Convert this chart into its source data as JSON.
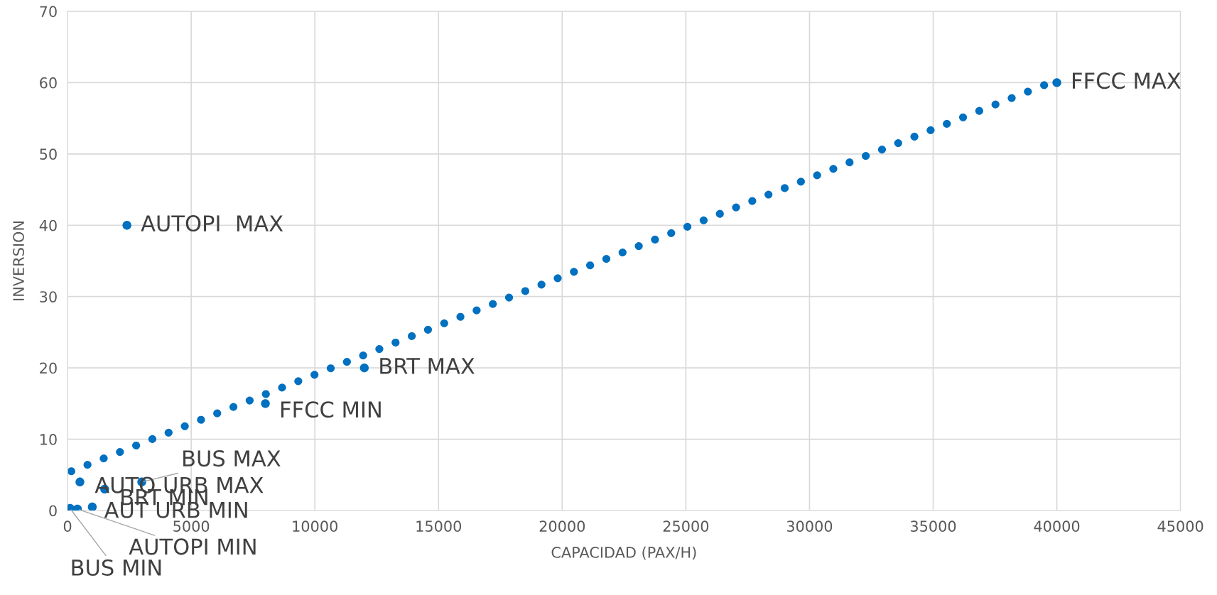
{
  "chart_data": {
    "type": "scatter",
    "xlabel": "CAPACIDAD (PAX/H)",
    "ylabel": "INVERSION",
    "series": [
      {
        "color": "#0070c0",
        "marker": "circle",
        "x": [
          2400,
          12000,
          8000,
          40000,
          3000,
          500,
          1500,
          100,
          400,
          1000
        ],
        "values": [
          40,
          20,
          15,
          60,
          4,
          4,
          3,
          0.3,
          0.2,
          0.5
        ]
      },
      {
        "type": "line",
        "color": "#0070c0",
        "line_style": "dotted",
        "x": [
          150,
          39600
        ],
        "values": [
          5.5,
          59.8
        ]
      }
    ],
    "annotations": [
      {
        "text": "AUTOPI  MAX",
        "x": 2400,
        "y": 40
      },
      {
        "text": "BRT MAX",
        "x": 12000,
        "y": 20
      },
      {
        "text": "FFCC MIN",
        "x": 8000,
        "y": 15
      },
      {
        "text": "FFCC MAX",
        "x": 40000,
        "y": 60
      },
      {
        "text": "BUS MAX",
        "x": 3000,
        "y": 4
      },
      {
        "text": "AUTO URB MAX",
        "x": 500,
        "y": 4
      },
      {
        "text": "BRT MIN",
        "x": 1500,
        "y": 3
      },
      {
        "text": "BUS MIN",
        "x": 100,
        "y": 0.3
      },
      {
        "text": "AUTOPI MIN",
        "x": 400,
        "y": 0.2
      },
      {
        "text": "AUT URB MIN",
        "x": 1000,
        "y": 0.5
      }
    ],
    "xlim": [
      0,
      45000
    ],
    "ylim": [
      0,
      70
    ],
    "xticks": [
      0,
      5000,
      10000,
      15000,
      20000,
      25000,
      30000,
      35000,
      40000,
      45000
    ],
    "yticks": [
      0,
      10,
      20,
      30,
      40,
      50,
      60,
      70
    ],
    "grid": true
  }
}
